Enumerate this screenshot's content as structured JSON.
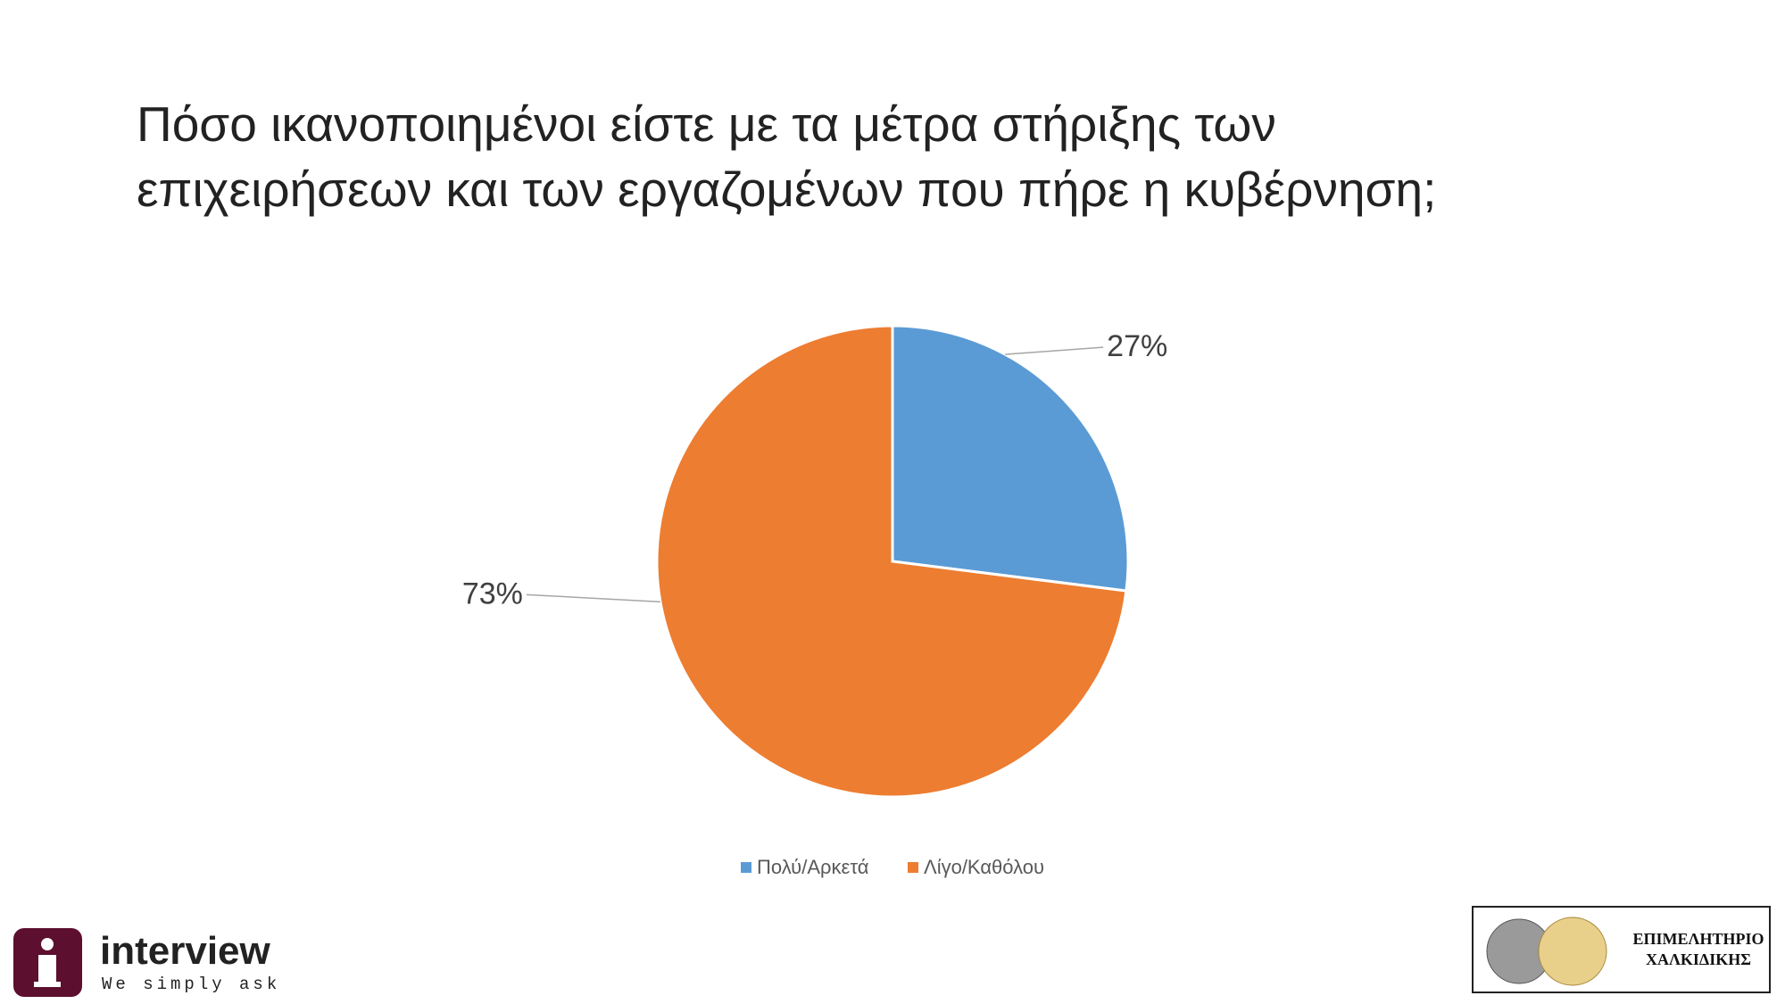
{
  "chart_data": {
    "type": "pie",
    "title": [
      "Πόσο ικανοποιημένοι είστε με τα μέτρα στήριξης των",
      "επιχειρήσεων και των εργαζομένων που πήρε η κυβέρνηση;"
    ],
    "categories": [
      "Πολύ/Αρκετά",
      "Λίγο/Καθόλου"
    ],
    "values": [
      27,
      73
    ],
    "value_labels": [
      "27%",
      "73%"
    ],
    "colors": [
      "#5b9bd5",
      "#ed7d31"
    ],
    "legend": "bottom"
  },
  "logos": {
    "interview": {
      "name": "interview",
      "slogan": "We simply ask"
    },
    "chamber": {
      "line1": "ΕΠΙΜΕΛΗΤΗΡΙΟ",
      "line2": "ΧΑΛΚΙΔΙΚΗΣ"
    }
  }
}
